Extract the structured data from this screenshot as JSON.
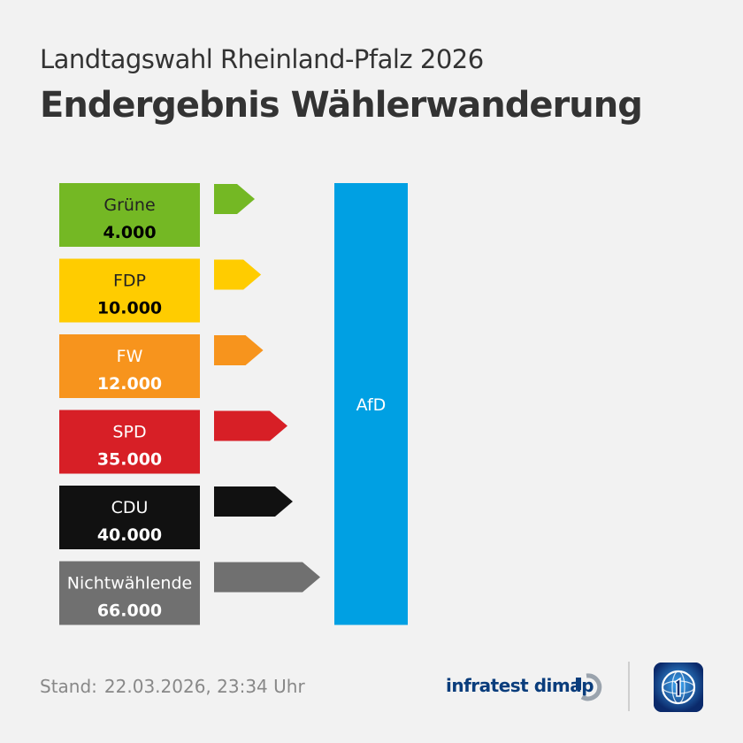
{
  "header": {
    "subtitle": "Landtagswahl Rheinland-Pfalz 2026",
    "title": "Endergebnis Wählerwanderung"
  },
  "chart_data": {
    "type": "bar",
    "title": "Endergebnis Wählerwanderung",
    "subtitle": "Landtagswahl Rheinland-Pfalz 2026",
    "target": {
      "label": "AfD",
      "color": "#00a0e3"
    },
    "sources": [
      {
        "label": "Grüne",
        "value": 4000,
        "value_label": "4.000",
        "color": "#74b824",
        "text_color": "#222222",
        "value_color": "#000000"
      },
      {
        "label": "FDP",
        "value": 10000,
        "value_label": "10.000",
        "color": "#ffcc00",
        "text_color": "#222222",
        "value_color": "#000000"
      },
      {
        "label": "FW",
        "value": 12000,
        "value_label": "12.000",
        "color": "#f7941d",
        "text_color": "#ffffff",
        "value_color": "#ffffff"
      },
      {
        "label": "SPD",
        "value": 35000,
        "value_label": "35.000",
        "color": "#d71f26",
        "text_color": "#ffffff",
        "value_color": "#ffffff"
      },
      {
        "label": "CDU",
        "value": 40000,
        "value_label": "40.000",
        "color": "#111111",
        "text_color": "#ffffff",
        "value_color": "#ffffff"
      },
      {
        "label": "Nichtwählende",
        "value": 66000,
        "value_label": "66.000",
        "color": "#707070",
        "text_color": "#ffffff",
        "value_color": "#ffffff"
      }
    ]
  },
  "footer": {
    "stand_label": "Stand:",
    "stand_date": "22.03.2026, 23:34 Uhr",
    "source": "infratest dimap"
  },
  "colors": {
    "background": "#f2f2f2",
    "title": "#333333",
    "footer_text": "#888888",
    "infratest_blue": "#0a3d7c",
    "ard_blue": "#0b2a6b"
  }
}
